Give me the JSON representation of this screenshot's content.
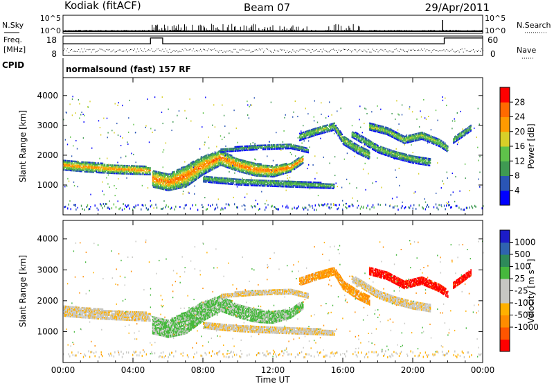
{
  "header": {
    "station": "Kodiak (fitACF)",
    "beam": "Beam 07",
    "date": "29/Apr/2011"
  },
  "sky_panel": {
    "left_label": "N.Sky",
    "right_label": "N.Search",
    "left_ticks": [
      "10^5",
      "10^0"
    ],
    "right_ticks": [
      "10^5",
      "10^0"
    ]
  },
  "freq_panel": {
    "left_label_1": "Freq.",
    "left_label_2": "[MHz]",
    "right_label": "Nave",
    "left_ticks": [
      "18",
      "8"
    ],
    "right_ticks": [
      "60",
      "0"
    ]
  },
  "cpid": {
    "label": "CPID",
    "mode": "normalsound (fast) 157 RF"
  },
  "colors": {
    "power_scale": [
      "#0000ff",
      "#2a55b5",
      "#3f9a52",
      "#5fc24a",
      "#d8cf28",
      "#ff9a00",
      "#ff6a00",
      "#ff0000"
    ],
    "velocity_scale": [
      "#ff0000",
      "#ff5500",
      "#ff8c00",
      "#ffb000",
      "#c7c7c3",
      "#c7c7c3",
      "#46b83d",
      "#2e8a5a",
      "#2f63b0",
      "#1c1cc8"
    ]
  },
  "chart_data": [
    {
      "type": "heatmap",
      "name": "power",
      "ylabel": "Slant Range [km]",
      "xlim": [
        0,
        24
      ],
      "ylim": [
        0,
        4600
      ],
      "y_ticks": [
        1000,
        2000,
        3000,
        4000
      ],
      "colorbar": {
        "label": "Power [dB]",
        "range": [
          0,
          32
        ],
        "ticks": [
          "4",
          "8",
          "12",
          "16",
          "20",
          "24",
          "28"
        ]
      },
      "bands": [
        {
          "name": "band-a",
          "t": [
            0.0,
            1.0,
            2.0,
            3.0,
            4.0,
            5.0
          ],
          "center": [
            1650,
            1600,
            1560,
            1520,
            1500,
            1460
          ],
          "width": [
            320,
            320,
            320,
            300,
            300,
            260
          ],
          "power": 24
        },
        {
          "name": "band-b",
          "t": [
            5.1,
            6.0,
            7.0,
            8.0,
            9.0,
            10.0,
            11.0,
            12.0,
            13.0,
            13.7
          ],
          "center": [
            1200,
            1080,
            1280,
            1650,
            1900,
            1650,
            1500,
            1450,
            1580,
            1850
          ],
          "width": [
            560,
            560,
            720,
            620,
            500,
            420,
            420,
            380,
            300,
            260
          ],
          "power": 26
        },
        {
          "name": "band-c",
          "t": [
            8.0,
            10.0,
            12.0,
            14.0,
            15.5
          ],
          "center": [
            1200,
            1100,
            1050,
            1000,
            950
          ],
          "width": [
            220,
            220,
            220,
            200,
            160
          ],
          "power": 14
        },
        {
          "name": "band-d",
          "t": [
            13.5,
            14.5,
            15.5,
            16.0,
            16.8,
            17.5
          ],
          "center": [
            2600,
            2800,
            2950,
            2500,
            2200,
            2000
          ],
          "width": [
            240,
            260,
            240,
            300,
            300,
            300
          ],
          "power": 16
        },
        {
          "name": "band-e",
          "t": [
            16.5,
            18.0,
            19.0,
            20.0,
            21.0
          ],
          "center": [
            2700,
            2200,
            2000,
            1850,
            1750
          ],
          "width": [
            220,
            260,
            260,
            260,
            240
          ],
          "power": 15
        },
        {
          "name": "band-f",
          "t": [
            17.5,
            18.5,
            19.5,
            20.5,
            21.5,
            22.0
          ],
          "center": [
            2950,
            2800,
            2500,
            2650,
            2400,
            2200
          ],
          "width": [
            240,
            240,
            240,
            260,
            240,
            220
          ],
          "power": 17
        },
        {
          "name": "band-g",
          "t": [
            22.3,
            22.8,
            23.3
          ],
          "center": [
            2500,
            2700,
            2900
          ],
          "width": [
            220,
            220,
            200
          ],
          "power": 14
        },
        {
          "name": "band-h",
          "t": [
            9.0,
            11.0,
            13.0,
            14.0
          ],
          "center": [
            2150,
            2250,
            2300,
            2150
          ],
          "width": [
            120,
            160,
            180,
            160
          ],
          "power": 12
        }
      ]
    },
    {
      "type": "heatmap",
      "name": "velocity",
      "xlabel": "Time UT",
      "ylabel": "Slant Range [km]",
      "xlim": [
        0,
        24
      ],
      "ylim": [
        0,
        4600
      ],
      "x_ticks": [
        "00:00",
        "04:00",
        "08:00",
        "12:00",
        "16:00",
        "20:00",
        "00:00"
      ],
      "y_ticks": [
        1000,
        2000,
        3000,
        4000
      ],
      "colorbar": {
        "label": "Velocity [m s⁻¹]",
        "ticks": [
          "1000",
          "500",
          "100",
          "25",
          "-25",
          "-100",
          "-500",
          "-1000"
        ]
      },
      "bands": [
        {
          "name": "band-a",
          "t": [
            0.0,
            1.0,
            2.0,
            3.0,
            4.0,
            5.0
          ],
          "center": [
            1650,
            1600,
            1560,
            1520,
            1500,
            1460
          ],
          "width": [
            320,
            320,
            320,
            300,
            300,
            260
          ],
          "velocity": 0
        },
        {
          "name": "band-b",
          "t": [
            5.1,
            6.0,
            7.0,
            8.0,
            9.0,
            10.0,
            11.0,
            12.0,
            13.0,
            13.7
          ],
          "center": [
            1200,
            1080,
            1280,
            1650,
            1900,
            1650,
            1500,
            1450,
            1580,
            1850
          ],
          "width": [
            560,
            560,
            720,
            620,
            500,
            420,
            420,
            380,
            300,
            260
          ],
          "velocity": 150
        },
        {
          "name": "band-c",
          "t": [
            8.0,
            10.0,
            12.0,
            14.0,
            15.5
          ],
          "center": [
            1200,
            1100,
            1050,
            1000,
            950
          ],
          "width": [
            220,
            220,
            220,
            200,
            160
          ],
          "velocity": 0
        },
        {
          "name": "band-d",
          "t": [
            13.5,
            14.5,
            15.5,
            16.0,
            16.8,
            17.5
          ],
          "center": [
            2600,
            2800,
            2950,
            2500,
            2200,
            2000
          ],
          "width": [
            240,
            260,
            240,
            300,
            300,
            300
          ],
          "velocity": -150
        },
        {
          "name": "band-e",
          "t": [
            16.5,
            18.0,
            19.0,
            20.0,
            21.0
          ],
          "center": [
            2700,
            2200,
            2000,
            1850,
            1750
          ],
          "width": [
            220,
            260,
            260,
            260,
            240
          ],
          "velocity": 0
        },
        {
          "name": "band-f",
          "t": [
            17.5,
            18.5,
            19.5,
            20.5,
            21.5,
            22.0
          ],
          "center": [
            2950,
            2800,
            2500,
            2650,
            2400,
            2200
          ],
          "width": [
            240,
            240,
            240,
            260,
            240,
            220
          ],
          "velocity": -600
        },
        {
          "name": "band-g",
          "t": [
            22.3,
            22.8,
            23.3
          ],
          "center": [
            2500,
            2700,
            2900
          ],
          "width": [
            220,
            220,
            200
          ],
          "velocity": -600
        },
        {
          "name": "band-h",
          "t": [
            9.0,
            11.0,
            13.0,
            14.0
          ],
          "center": [
            2150,
            2250,
            2300,
            2150
          ],
          "width": [
            120,
            160,
            180,
            160
          ],
          "velocity": 0
        }
      ]
    },
    {
      "type": "line",
      "name": "frequency",
      "xlim": [
        0,
        24
      ],
      "ylim": [
        8,
        18
      ],
      "x": [
        0,
        5.0,
        5.0,
        5.7,
        5.7,
        21.8,
        21.8,
        24
      ],
      "y": [
        14,
        14,
        17,
        17,
        14,
        14,
        17,
        17
      ]
    }
  ]
}
